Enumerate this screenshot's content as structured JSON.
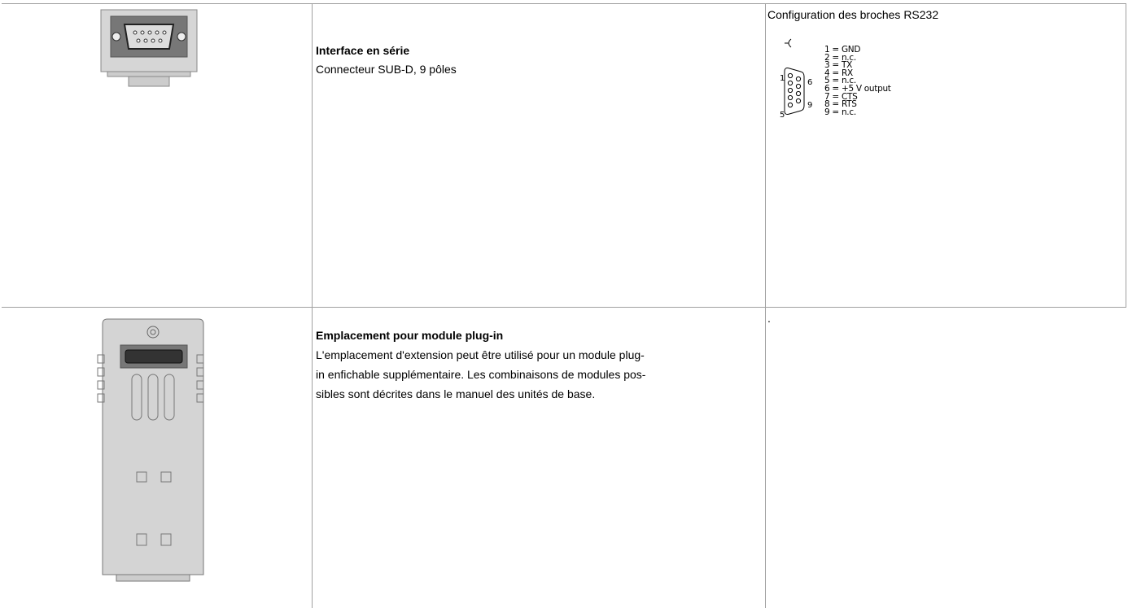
{
  "rows": [
    {
      "title": "Interface en série",
      "description": "Connecteur SUB-D, 9 pôles",
      "pinout": {
        "title": "Configuration des broches RS232",
        "pin_numbers": [
          "1",
          "6",
          "5",
          "9"
        ],
        "pins": [
          "1 = GND",
          "2 = n.c.",
          "3 = TX",
          "4 = RX",
          "5 = n.c.",
          "6 = +5 V output",
          "7 = CTS",
          "8 = RTS",
          "9 = n.c."
        ]
      }
    },
    {
      "title": "Emplacement pour module plug-in",
      "description_lines": [
        "L'emplacement d'extension peut être utilisé pour un module plug-",
        "in enfichable supplémentaire. Les combinaisons de modules pos-",
        "sibles sont décrites dans le manuel des unités de base."
      ],
      "note": "."
    }
  ]
}
